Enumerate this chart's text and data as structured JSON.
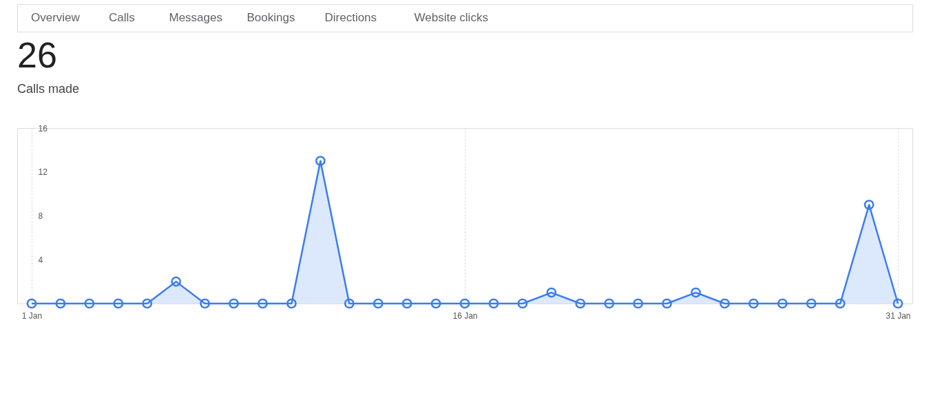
{
  "chart_data": {
    "type": "area",
    "title": "26",
    "subtitle": "Calls made",
    "annotations": [
      "Overview",
      "Calls",
      "Messages",
      "Bookings",
      "Directions",
      "Website clicks"
    ],
    "categories": [
      "1 Jan",
      null,
      null,
      null,
      null,
      null,
      null,
      null,
      null,
      null,
      null,
      null,
      null,
      null,
      null,
      "16 Jan",
      null,
      null,
      null,
      null,
      null,
      null,
      null,
      null,
      null,
      null,
      null,
      null,
      null,
      null,
      "31 Jan"
    ],
    "values": [
      0,
      0,
      0,
      0,
      0,
      2,
      0,
      0,
      0,
      0,
      13,
      0,
      0,
      0,
      0,
      0,
      0,
      0,
      1,
      0,
      0,
      0,
      0,
      1,
      0,
      0,
      0,
      0,
      0,
      9,
      0
    ],
    "color": "#3b7ded",
    "ylim": [
      0,
      16
    ],
    "yticks": [
      4,
      8,
      12,
      16
    ],
    "grid": "x",
    "marker": "circle"
  }
}
